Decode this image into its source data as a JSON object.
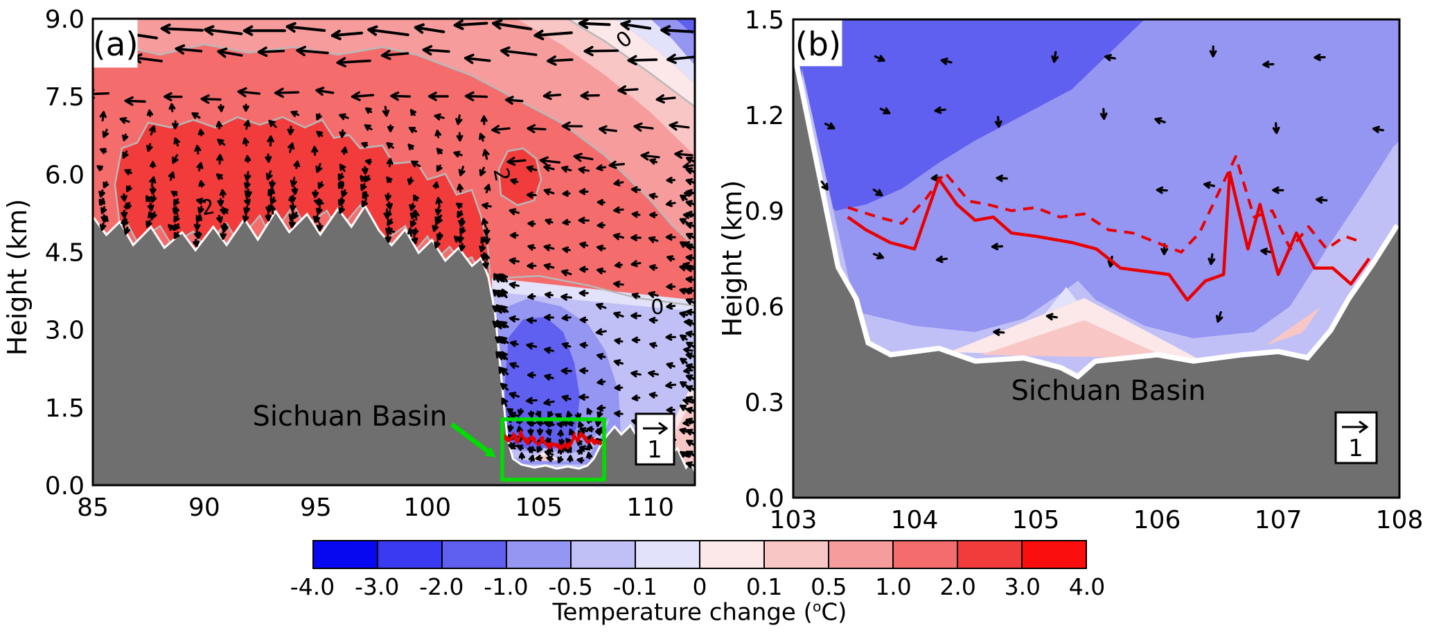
{
  "chart_data": {
    "type": "filled-contour-cross-sections-with-wind-vectors",
    "colorbar": {
      "title_prefix": "Temperature change (",
      "title_sup": "o",
      "title_suffix": "C)",
      "tick_labels": [
        "-4.0",
        "-3.0",
        "-2.0",
        "-1.0",
        "-0.5",
        "-0.1",
        "0",
        "0.1",
        "0.5",
        "1.0",
        "2.0",
        "3.0",
        "4.0"
      ],
      "levels": [
        -4,
        -3,
        -2,
        -1,
        -0.5,
        -0.1,
        0,
        0.1,
        0.5,
        1,
        2,
        3,
        4
      ],
      "colors": [
        "#0808f0",
        "#3a3af2",
        "#5f5ff0",
        "#9595f2",
        "#c0c0f6",
        "#e2e2fb",
        "#fce8e8",
        "#f9c6c6",
        "#f69c9c",
        "#f56c6c",
        "#f23b3b",
        "#fa0e0e"
      ],
      "terrain_color": "#6f6f6f",
      "contour_line_color": "#b8b8b8",
      "highlight_color": "#00dc00",
      "line_color": "#e80000"
    },
    "panels": [
      {
        "label": "(a)",
        "ylabel": "Height (km)",
        "xlim": [
          85,
          112
        ],
        "ylim": [
          0,
          9
        ],
        "xticks": {
          "values": [
            85,
            90,
            95,
            100,
            105,
            110
          ],
          "labels": [
            "85",
            "90",
            "95",
            "100",
            "105",
            "110"
          ]
        },
        "yticks": {
          "values": [
            9,
            7.5,
            6,
            4.5,
            3,
            1.5,
            0
          ],
          "labels": [
            "9.0",
            "7.5",
            "6.0",
            "4.5",
            "3.0",
            "1.5",
            "0.0"
          ]
        },
        "annotation": "Sichuan Basin",
        "contour_labels": [
          "2",
          "2",
          "0",
          "0"
        ],
        "reference_vector_label": "1",
        "terrain": {
          "x": [
            85,
            85.6,
            86.2,
            86.8,
            87.6,
            88.2,
            89,
            89.6,
            90.4,
            91,
            91.8,
            92.4,
            93.2,
            93.8,
            94.6,
            95.2,
            96,
            96.6,
            97.2,
            97.8,
            98.4,
            99,
            99.6,
            100.2,
            100.8,
            101.4,
            102,
            102.4,
            102.7,
            103,
            103.2,
            103.4,
            103.55,
            103.8,
            104.2,
            104.8,
            105.3,
            105.8,
            106.3,
            106.8,
            107.2,
            107.5,
            107.8,
            108.1,
            108.4,
            108.7,
            109.1,
            109.4,
            109.8,
            110.2,
            110.5,
            110.9,
            111.2,
            111.6,
            111.8,
            112
          ],
          "z": [
            5.15,
            4.8,
            5.05,
            4.6,
            4.95,
            4.55,
            4.85,
            4.5,
            4.95,
            4.6,
            5.1,
            4.7,
            5.25,
            4.85,
            5.2,
            4.8,
            5.3,
            4.95,
            5.35,
            4.9,
            4.6,
            4.9,
            4.45,
            4.7,
            4.3,
            4.55,
            4.2,
            4.35,
            4.0,
            3.3,
            2.4,
            1.5,
            0.9,
            0.5,
            0.38,
            0.32,
            0.36,
            0.3,
            0.34,
            0.3,
            0.36,
            0.5,
            0.75,
            0.95,
            1.1,
            0.95,
            1.12,
            0.9,
            1.02,
            0.85,
            0.95,
            0.55,
            0.68,
            0.3,
            0.42,
            0.2
          ]
        },
        "basin_line_solid": {
          "x": [
            103.45,
            103.65,
            103.85,
            104.05,
            104.2,
            104.35,
            104.5,
            104.65,
            104.8,
            105.0,
            105.15,
            105.3,
            105.5,
            105.65,
            105.8,
            106.0,
            106.15,
            106.3,
            106.45,
            106.6,
            106.75,
            106.9,
            107.05,
            107.2,
            107.35,
            107.5,
            107.65,
            107.8
          ],
          "z": [
            0.92,
            0.85,
            0.95,
            0.83,
            1.0,
            0.88,
            0.8,
            0.92,
            0.85,
            0.78,
            0.88,
            0.8,
            0.72,
            0.8,
            0.75,
            0.7,
            0.78,
            0.72,
            0.8,
            0.95,
            0.85,
            1.0,
            0.9,
            0.82,
            0.88,
            0.8,
            0.85,
            0.78
          ]
        },
        "basin_line_dashed": {
          "x": [
            103.45,
            103.65,
            103.85,
            104.05,
            104.2,
            104.35,
            104.5,
            104.65,
            104.8,
            105.0,
            105.15,
            105.3,
            105.5,
            105.65,
            105.8,
            106.0,
            106.15,
            106.3,
            106.45,
            106.6,
            106.75,
            106.9,
            107.05,
            107.2,
            107.35,
            107.5,
            107.65,
            107.8
          ],
          "z": [
            0.97,
            0.9,
            1.0,
            0.9,
            1.05,
            0.93,
            0.86,
            0.97,
            0.9,
            0.84,
            0.93,
            0.86,
            0.78,
            0.86,
            0.8,
            0.76,
            0.83,
            0.78,
            0.86,
            1.0,
            0.9,
            1.05,
            0.95,
            0.88,
            0.93,
            0.86,
            0.9,
            0.83
          ]
        }
      },
      {
        "label": "(b)",
        "ylabel": "Height (km)",
        "xlim": [
          103,
          108
        ],
        "ylim": [
          0,
          1.5
        ],
        "xticks": {
          "values": [
            103,
            104,
            105,
            106,
            107,
            108
          ],
          "labels": [
            "103",
            "104",
            "105",
            "106",
            "107",
            "108"
          ]
        },
        "yticks": {
          "values": [
            1.5,
            1.2,
            0.9,
            0.6,
            0.3,
            0
          ],
          "labels": [
            "1.5",
            "1.2",
            "0.9",
            "0.6",
            "0.3",
            "0.0"
          ]
        },
        "annotation": "Sichuan Basin",
        "contour_labels": [],
        "reference_vector_label": "1",
        "terrain": {
          "x": [
            103,
            103.35,
            103.5,
            103.6,
            103.8,
            104.2,
            104.5,
            104.9,
            105.2,
            105.35,
            105.5,
            106,
            106.3,
            106.7,
            107,
            107.25,
            107.45,
            107.6,
            107.8,
            108
          ],
          "z": [
            1.37,
            0.72,
            0.62,
            0.48,
            0.44,
            0.46,
            0.42,
            0.43,
            0.4,
            0.37,
            0.42,
            0.44,
            0.42,
            0.44,
            0.45,
            0.43,
            0.52,
            0.62,
            0.73,
            0.85
          ]
        },
        "basin_line_solid": {
          "x": [
            103.45,
            103.6,
            103.8,
            104.0,
            104.2,
            104.35,
            104.5,
            104.65,
            104.8,
            105.0,
            105.3,
            105.5,
            105.7,
            105.9,
            106.1,
            106.25,
            106.4,
            106.55,
            106.6,
            106.75,
            106.85,
            107.0,
            107.15,
            107.3,
            107.45,
            107.6,
            107.75
          ],
          "z": [
            0.88,
            0.84,
            0.8,
            0.78,
            1.0,
            0.92,
            0.87,
            0.88,
            0.83,
            0.82,
            0.8,
            0.78,
            0.72,
            0.71,
            0.7,
            0.62,
            0.68,
            0.7,
            1.02,
            0.78,
            0.92,
            0.7,
            0.83,
            0.72,
            0.72,
            0.67,
            0.75
          ]
        },
        "basin_line_dashed": {
          "x": [
            103.45,
            103.7,
            103.9,
            104.1,
            104.25,
            104.45,
            104.6,
            104.8,
            105.0,
            105.2,
            105.4,
            105.6,
            105.8,
            106.0,
            106.2,
            106.35,
            106.5,
            106.65,
            106.8,
            106.95,
            107.1,
            107.25,
            107.4,
            107.55,
            107.7
          ],
          "z": [
            0.91,
            0.88,
            0.86,
            0.94,
            1.02,
            0.93,
            0.92,
            0.9,
            0.91,
            0.88,
            0.89,
            0.84,
            0.83,
            0.8,
            0.77,
            0.83,
            0.95,
            1.07,
            0.88,
            0.9,
            0.78,
            0.85,
            0.78,
            0.82,
            0.8
          ]
        }
      }
    ]
  }
}
